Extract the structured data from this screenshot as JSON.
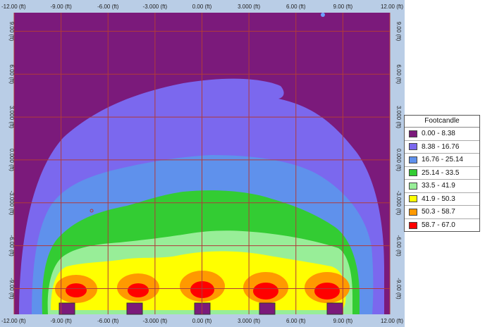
{
  "map": {
    "x_ticks_top": [
      "-12.00 (ft)",
      "-9.00 (ft)",
      "-6.00 (ft)",
      "-3.000 (ft)",
      "0.00 (ft)",
      "3.000 (ft)",
      "6.00 (ft)",
      "9.00 (ft)",
      "12.00 (ft)"
    ],
    "x_ticks_bottom": [
      "-12.00 (ft)",
      "-9.00 (ft)",
      "-6.00 (ft)",
      "-3.000 (ft)",
      "0.00 (ft)",
      "3.000 (ft)",
      "6.00 (ft)",
      "9.00 (ft)",
      "12.00 (ft)"
    ],
    "y_ticks": [
      "9.00 (ft)",
      "6.00 (ft)",
      "3.000 (ft)",
      "0.000 (ft)",
      "-3.000 (ft)",
      "-6.00 (ft)",
      "-9.00 (ft)"
    ],
    "grid_color": "#b03a3a",
    "frame_color": "#b9cde6"
  },
  "legend": {
    "title": "Footcandle",
    "items": [
      {
        "range": "0.00 - 8.38",
        "color": "#7b1a7b"
      },
      {
        "range": "8.38 - 16.76",
        "color": "#7b68ee"
      },
      {
        "range": "16.76 - 25.14",
        "color": "#5f91ec"
      },
      {
        "range": "25.14 - 33.5",
        "color": "#33cc33"
      },
      {
        "range": "33.5 - 41.9",
        "color": "#98ee98"
      },
      {
        "range": "41.9 - 50.3",
        "color": "#ffff00"
      },
      {
        "range": "50.3 - 58.7",
        "color": "#ff9900"
      },
      {
        "range": "58.7 - 67.0",
        "color": "#ff0000"
      }
    ]
  }
}
